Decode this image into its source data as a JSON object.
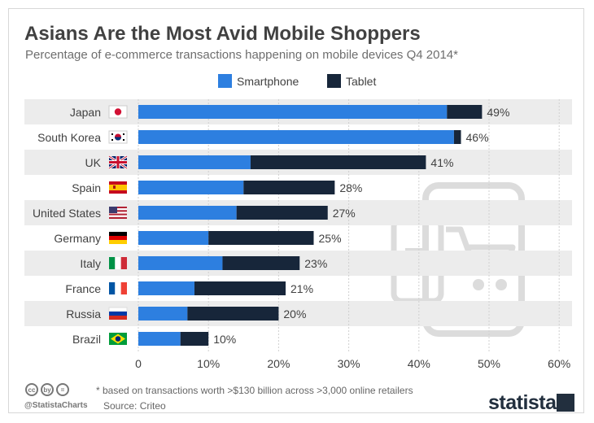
{
  "title": "Asians Are the Most Avid Mobile Shoppers",
  "subtitle": "Percentage of e-commerce transactions happening on mobile devices Q4 2014*",
  "footnote": "* based on transactions worth >$130 billion across >3,000 online retailers",
  "source": "Source: Criteo",
  "handle": "@StatistaCharts",
  "brand": "statista",
  "cc_icons": [
    "cc",
    "by",
    "="
  ],
  "colors": {
    "smartphone": "#2d7fe0",
    "tablet": "#17263a",
    "stripe": "#ececec",
    "text": "#414141"
  },
  "chart_data": {
    "type": "bar",
    "orientation": "horizontal",
    "stacked": true,
    "categories": [
      "Japan",
      "South Korea",
      "UK",
      "Spain",
      "United States",
      "Germany",
      "Italy",
      "France",
      "Russia",
      "Brazil"
    ],
    "series": [
      {
        "name": "Smartphone",
        "color": "#2d7fe0",
        "values": [
          44,
          45,
          16,
          15,
          14,
          10,
          12,
          8,
          7,
          6
        ]
      },
      {
        "name": "Tablet",
        "color": "#17263a",
        "values": [
          5,
          1,
          25,
          13,
          13,
          15,
          11,
          13,
          13,
          4
        ]
      }
    ],
    "total_labels": [
      "49%",
      "46%",
      "41%",
      "28%",
      "27%",
      "25%",
      "23%",
      "21%",
      "20%",
      "10%"
    ],
    "xlim": [
      0,
      60
    ],
    "xticks": [
      0,
      10,
      20,
      30,
      40,
      50,
      60
    ],
    "xtick_labels": [
      "0",
      "10%",
      "20%",
      "30%",
      "40%",
      "50%",
      "60%"
    ],
    "legend_position": "top-center",
    "flags": [
      "japan",
      "south-korea",
      "uk",
      "spain",
      "usa",
      "germany",
      "italy",
      "france",
      "russia",
      "brazil"
    ],
    "xlabel": "",
    "ylabel": ""
  }
}
